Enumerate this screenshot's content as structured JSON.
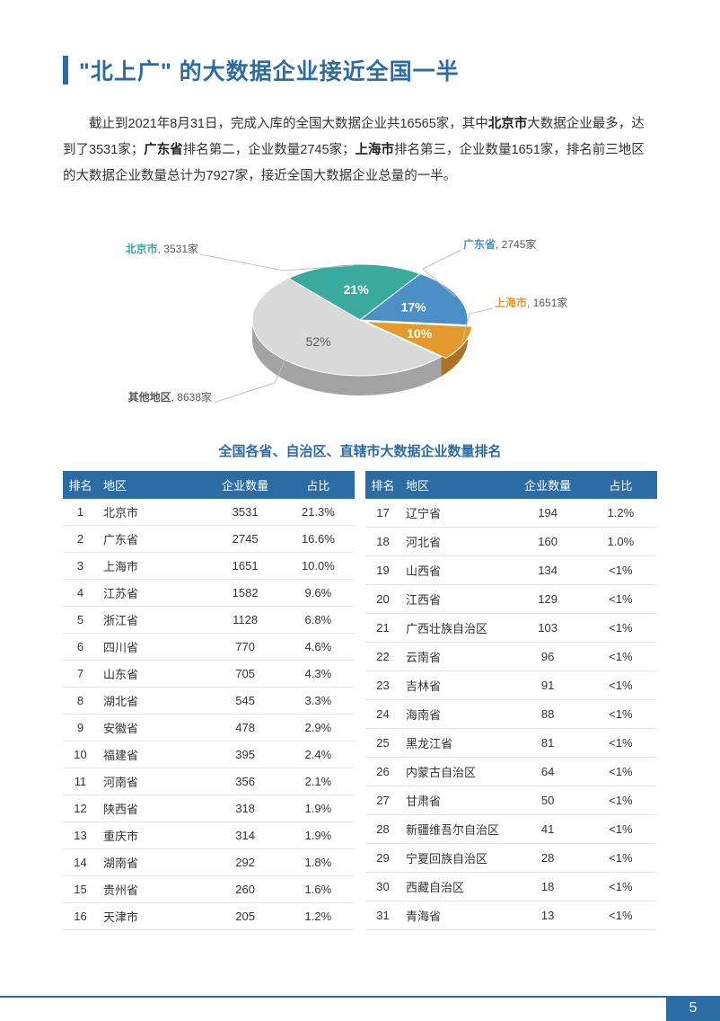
{
  "title": "\"北上广\" 的大数据企业接近全国一半",
  "intro_parts": {
    "p1": "截止到2021年8月31日，完成入库的全国大数据企业共16565家，其中",
    "b1": "北京市",
    "p2": "大数据企业最多，达到了3531家；",
    "b2": "广东省",
    "p3": "排名第二，企业数量2745家；",
    "b3": "上海市",
    "p4": "排名第三，企业数量1651家，排名前三地区的大数据企业数量总计为7927家，接近全国大数据企业总量的一半。"
  },
  "pie": {
    "slices": [
      {
        "name": "北京市",
        "count": "3531家",
        "pct": "21%",
        "color": "#3aa99e",
        "label_color": "#3aa99e"
      },
      {
        "name": "广东省",
        "count": "2745家",
        "pct": "17%",
        "color": "#4a90c7",
        "label_color": "#4a90c7"
      },
      {
        "name": "上海市",
        "count": "1651家",
        "pct": "10%",
        "color": "#e39a2c",
        "label_color": "#e39a2c"
      },
      {
        "name": "其他地区",
        "count": "8638家",
        "pct": "52%",
        "color": "#d9d9d9",
        "label_color": "#595959"
      }
    ],
    "background": "#ffffff",
    "label_font_size": 12,
    "pct_font_size": 14
  },
  "table_title": "全国各省、自治区、直辖市大数据企业数量排名",
  "table": {
    "headers": {
      "rank": "排名",
      "region": "地区",
      "count": "企业数量",
      "pct": "占比"
    },
    "header_bg": "#2c6ca3",
    "header_fg": "#ffffff",
    "row_border": "#e8e8e8",
    "left": [
      {
        "rank": "1",
        "region": "北京市",
        "count": "3531",
        "pct": "21.3%"
      },
      {
        "rank": "2",
        "region": "广东省",
        "count": "2745",
        "pct": "16.6%"
      },
      {
        "rank": "3",
        "region": "上海市",
        "count": "1651",
        "pct": "10.0%"
      },
      {
        "rank": "4",
        "region": "江苏省",
        "count": "1582",
        "pct": "9.6%"
      },
      {
        "rank": "5",
        "region": "浙江省",
        "count": "1128",
        "pct": "6.8%"
      },
      {
        "rank": "6",
        "region": "四川省",
        "count": "770",
        "pct": "4.6%"
      },
      {
        "rank": "7",
        "region": "山东省",
        "count": "705",
        "pct": "4.3%"
      },
      {
        "rank": "8",
        "region": "湖北省",
        "count": "545",
        "pct": "3.3%"
      },
      {
        "rank": "9",
        "region": "安徽省",
        "count": "478",
        "pct": "2.9%"
      },
      {
        "rank": "10",
        "region": "福建省",
        "count": "395",
        "pct": "2.4%"
      },
      {
        "rank": "11",
        "region": "河南省",
        "count": "356",
        "pct": "2.1%"
      },
      {
        "rank": "12",
        "region": "陕西省",
        "count": "318",
        "pct": "1.9%"
      },
      {
        "rank": "13",
        "region": "重庆市",
        "count": "314",
        "pct": "1.9%"
      },
      {
        "rank": "14",
        "region": "湖南省",
        "count": "292",
        "pct": "1.8%"
      },
      {
        "rank": "15",
        "region": "贵州省",
        "count": "260",
        "pct": "1.6%"
      },
      {
        "rank": "16",
        "region": "天津市",
        "count": "205",
        "pct": "1.2%"
      }
    ],
    "right": [
      {
        "rank": "17",
        "region": "辽宁省",
        "count": "194",
        "pct": "1.2%"
      },
      {
        "rank": "18",
        "region": "河北省",
        "count": "160",
        "pct": "1.0%"
      },
      {
        "rank": "19",
        "region": "山西省",
        "count": "134",
        "pct": "<1%"
      },
      {
        "rank": "20",
        "region": "江西省",
        "count": "129",
        "pct": "<1%"
      },
      {
        "rank": "21",
        "region": "广西壮族自治区",
        "count": "103",
        "pct": "<1%"
      },
      {
        "rank": "22",
        "region": "云南省",
        "count": "96",
        "pct": "<1%"
      },
      {
        "rank": "23",
        "region": "吉林省",
        "count": "91",
        "pct": "<1%"
      },
      {
        "rank": "24",
        "region": "海南省",
        "count": "88",
        "pct": "<1%"
      },
      {
        "rank": "25",
        "region": "黑龙江省",
        "count": "81",
        "pct": "<1%"
      },
      {
        "rank": "26",
        "region": "内蒙古自治区",
        "count": "64",
        "pct": "<1%"
      },
      {
        "rank": "27",
        "region": "甘肃省",
        "count": "50",
        "pct": "<1%"
      },
      {
        "rank": "28",
        "region": "新疆维吾尔自治区",
        "count": "41",
        "pct": "<1%"
      },
      {
        "rank": "29",
        "region": "宁夏回族自治区",
        "count": "28",
        "pct": "<1%"
      },
      {
        "rank": "30",
        "region": "西藏自治区",
        "count": "18",
        "pct": "<1%"
      },
      {
        "rank": "31",
        "region": "青海省",
        "count": "13",
        "pct": "<1%"
      }
    ]
  },
  "page_number": "5",
  "colors": {
    "accent": "#2c6ca3",
    "text": "#333333"
  }
}
